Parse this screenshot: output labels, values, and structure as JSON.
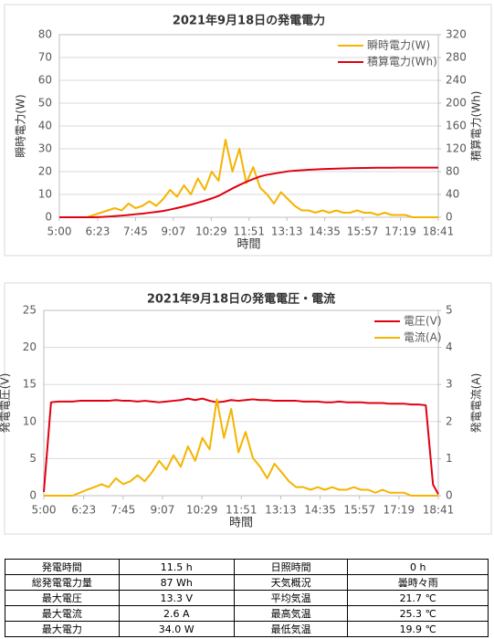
{
  "chart_data": [
    {
      "type": "line",
      "title": "2021年9月18日の発電電力",
      "xlabel": "時間",
      "ylabel": "瞬時電力(W)",
      "y2label": "積算電力(Wh)",
      "x": [
        300,
        315,
        330,
        345,
        360,
        375,
        390,
        405,
        420,
        435,
        450,
        465,
        480,
        495,
        510,
        525,
        540,
        555,
        570,
        585,
        600,
        615,
        630,
        645,
        660,
        675,
        690,
        705,
        720,
        735,
        750,
        765,
        780,
        795,
        810,
        825,
        840,
        855,
        870,
        885,
        900,
        915,
        930,
        945,
        960,
        975,
        990,
        1005,
        1020,
        1035,
        1050,
        1065,
        1080,
        1095,
        1110,
        1121
      ],
      "xlim": [
        300,
        1121
      ],
      "xticks": [
        {
          "value": 300,
          "label": "5:00"
        },
        {
          "value": 383,
          "label": "6:23"
        },
        {
          "value": 465,
          "label": "7:45"
        },
        {
          "value": 547,
          "label": "9:07"
        },
        {
          "value": 629,
          "label": "10:29"
        },
        {
          "value": 711,
          "label": "11:51"
        },
        {
          "value": 793,
          "label": "13:13"
        },
        {
          "value": 875,
          "label": "14:35"
        },
        {
          "value": 957,
          "label": "15:57"
        },
        {
          "value": 1039,
          "label": "17:19"
        },
        {
          "value": 1121,
          "label": "18:41"
        }
      ],
      "ylim": [
        0,
        80
      ],
      "yticks": [
        0,
        10,
        20,
        30,
        40,
        50,
        60,
        70,
        80
      ],
      "y2lim": [
        0,
        320
      ],
      "y2ticks": [
        0,
        40,
        80,
        120,
        160,
        200,
        240,
        280,
        320
      ],
      "grid": true,
      "legend": "top-right",
      "series": [
        {
          "name": "瞬時電力(W)",
          "color": "#f5b400",
          "values": [
            0,
            0,
            0,
            0,
            0,
            1,
            2,
            3,
            4,
            3,
            6,
            4,
            5,
            7,
            5,
            8,
            12,
            9,
            14,
            10,
            17,
            12,
            20,
            16,
            34,
            20,
            30,
            15,
            22,
            13,
            10,
            6,
            11,
            8,
            5,
            3,
            3,
            2,
            3,
            2,
            3,
            2,
            2,
            3,
            2,
            2,
            1,
            2,
            1,
            1,
            1,
            0,
            0,
            0,
            0,
            0
          ]
        },
        {
          "name": "積算電力(Wh)",
          "color": "#e00010",
          "axis": "y2",
          "values": [
            0,
            0,
            0,
            0,
            0,
            0.1,
            0.5,
            1.1,
            2,
            2.9,
            4,
            5.3,
            6.4,
            7.9,
            9.4,
            11,
            13.5,
            16.2,
            19,
            22,
            25.5,
            29,
            33,
            37.5,
            44,
            50.5,
            56.5,
            62,
            67,
            71.5,
            74.5,
            76.5,
            78.5,
            80.5,
            81.7,
            82.5,
            83.2,
            83.8,
            84.4,
            84.9,
            85.3,
            85.6,
            85.9,
            86.2,
            86.4,
            86.6,
            86.7,
            86.8,
            86.9,
            87,
            87,
            87,
            87,
            87,
            87,
            87
          ]
        }
      ]
    },
    {
      "type": "line",
      "title": "2021年9月18日の発電電圧・電流",
      "xlabel": "時間",
      "ylabel": "発電電圧(V)",
      "y2label": "発電電流(A)",
      "x": [
        300,
        315,
        330,
        345,
        360,
        375,
        390,
        405,
        420,
        435,
        450,
        465,
        480,
        495,
        510,
        525,
        540,
        555,
        570,
        585,
        600,
        615,
        630,
        645,
        660,
        675,
        690,
        705,
        720,
        735,
        750,
        765,
        780,
        795,
        810,
        825,
        840,
        855,
        870,
        885,
        900,
        915,
        930,
        945,
        960,
        975,
        990,
        1005,
        1020,
        1035,
        1050,
        1065,
        1080,
        1095,
        1110,
        1121
      ],
      "xlim": [
        300,
        1121
      ],
      "xticks": [
        {
          "value": 300,
          "label": "5:00"
        },
        {
          "value": 383,
          "label": "6:23"
        },
        {
          "value": 465,
          "label": "7:45"
        },
        {
          "value": 547,
          "label": "9:07"
        },
        {
          "value": 629,
          "label": "10:29"
        },
        {
          "value": 711,
          "label": "11:51"
        },
        {
          "value": 793,
          "label": "13:13"
        },
        {
          "value": 875,
          "label": "14:35"
        },
        {
          "value": 957,
          "label": "15:57"
        },
        {
          "value": 1039,
          "label": "17:19"
        },
        {
          "value": 1121,
          "label": "18:41"
        }
      ],
      "ylim": [
        0,
        25
      ],
      "yticks": [
        0,
        5,
        10,
        15,
        20,
        25
      ],
      "y2lim": [
        0,
        5
      ],
      "y2ticks": [
        0,
        1,
        2,
        3,
        4,
        5
      ],
      "grid": true,
      "legend": "top-right",
      "series": [
        {
          "name": "電圧(V)",
          "color": "#e00010",
          "values": [
            0.5,
            12.6,
            12.7,
            12.7,
            12.7,
            12.8,
            12.8,
            12.8,
            12.8,
            12.8,
            12.9,
            12.8,
            12.8,
            12.7,
            12.8,
            12.7,
            12.6,
            12.7,
            12.8,
            12.9,
            13.1,
            12.9,
            13.1,
            12.8,
            12.6,
            12.7,
            12.9,
            12.8,
            12.9,
            13,
            12.9,
            12.9,
            12.8,
            12.8,
            12.8,
            12.8,
            12.7,
            12.7,
            12.7,
            12.6,
            12.6,
            12.7,
            12.6,
            12.6,
            12.6,
            12.5,
            12.5,
            12.5,
            12.4,
            12.4,
            12.4,
            12.3,
            12.3,
            12.2,
            1.5,
            0.2
          ]
        },
        {
          "name": "電流(A)",
          "color": "#f5b400",
          "axis": "y2",
          "values": [
            0,
            0,
            0,
            0,
            0,
            0.08,
            0.16,
            0.23,
            0.31,
            0.23,
            0.47,
            0.31,
            0.39,
            0.55,
            0.39,
            0.63,
            0.94,
            0.7,
            1.09,
            0.78,
            1.33,
            0.94,
            1.56,
            1.25,
            2.6,
            1.56,
            2.34,
            1.17,
            1.72,
            1.02,
            0.78,
            0.47,
            0.86,
            0.63,
            0.39,
            0.23,
            0.23,
            0.16,
            0.23,
            0.16,
            0.23,
            0.16,
            0.16,
            0.23,
            0.16,
            0.16,
            0.08,
            0.16,
            0.08,
            0.08,
            0.08,
            0,
            0,
            0,
            0,
            0
          ]
        }
      ]
    }
  ],
  "table": {
    "rows": [
      [
        "発電時間",
        "11.5 h",
        "日照時間",
        "0 h"
      ],
      [
        "総発電電力量",
        "87 Wh",
        "天気概況",
        "曇時々雨"
      ],
      [
        "最大電圧",
        "13.3 V",
        "平均気温",
        "21.7 ℃"
      ],
      [
        "最大電流",
        "2.6 A",
        "最高気温",
        "25.3 ℃"
      ],
      [
        "最大電力",
        "34.0 W",
        "最低気温",
        "19.9 ℃"
      ]
    ]
  }
}
